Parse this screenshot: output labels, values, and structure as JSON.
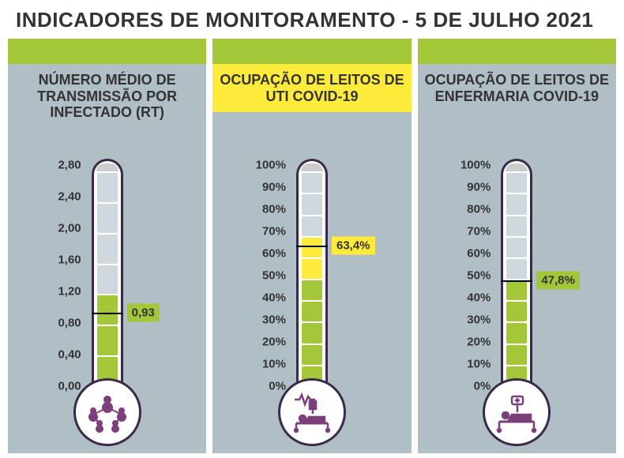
{
  "title": "INDICADORES DE MONITORAMENTO - 5 DE JULHO 2021",
  "colors": {
    "panel_bg": "#b0bec5",
    "green": "#a4c639",
    "yellow": "#ffeb3b",
    "gray": "#cfd8dc",
    "tube_border": "#3a2a4a",
    "purple": "#7b3f7b"
  },
  "panels": [
    {
      "title": "NÚMERO MÉDIO DE TRANSMISSÃO POR INFECTADO (RT)",
      "header_color": "#a4c639",
      "title_bg": "#b0bec5",
      "icon": "network",
      "scale": {
        "min": 0.0,
        "max": 2.8,
        "ticks": [
          "2,80",
          "2,40",
          "2,00",
          "1,60",
          "1,20",
          "0,80",
          "0,40",
          "0,00"
        ],
        "tick_values": [
          2.8,
          2.4,
          2.0,
          1.6,
          1.2,
          0.8,
          0.4,
          0.0
        ]
      },
      "value": 0.93,
      "value_label": "0,93",
      "flag_bg": "#a4c639",
      "segments": [
        {
          "from": 0.0,
          "to": 1.0,
          "color": "#a4c639"
        },
        {
          "from": 1.0,
          "to": 1.2,
          "color": "#cfd8dc"
        }
      ],
      "seg_count": 7,
      "seg_colors": [
        "#a4c639",
        "#a4c639",
        "#a4c639",
        "#cfd8dc",
        "#cfd8dc",
        "#cfd8dc",
        "#cfd8dc"
      ]
    },
    {
      "title": "OCUPAÇÃO DE LEITOS DE UTI COVID-19",
      "header_color": "#a4c639",
      "title_bg": "#ffeb3b",
      "icon": "icu",
      "scale": {
        "min": 0,
        "max": 100,
        "ticks": [
          "100%",
          "90%",
          "80%",
          "70%",
          "60%",
          "50%",
          "40%",
          "30%",
          "20%",
          "10%",
          "0%"
        ],
        "tick_values": [
          100,
          90,
          80,
          70,
          60,
          50,
          40,
          30,
          20,
          10,
          0
        ]
      },
      "value": 63.4,
      "value_label": "63,4%",
      "flag_bg": "#ffeb3b",
      "seg_count": 10,
      "seg_colors": [
        "#a4c639",
        "#a4c639",
        "#a4c639",
        "#a4c639",
        "#a4c639",
        "#ffeb3b",
        "#ffeb3b",
        "#cfd8dc",
        "#cfd8dc",
        "#cfd8dc"
      ]
    },
    {
      "title": "OCUPAÇÃO DE LEITOS DE ENFERMARIA COVID-19",
      "header_color": "#a4c639",
      "title_bg": "#b0bec5",
      "icon": "bed",
      "scale": {
        "min": 0,
        "max": 100,
        "ticks": [
          "100%",
          "90%",
          "80%",
          "70%",
          "60%",
          "50%",
          "40%",
          "30%",
          "20%",
          "10%",
          "0%"
        ],
        "tick_values": [
          100,
          90,
          80,
          70,
          60,
          50,
          40,
          30,
          20,
          10,
          0
        ]
      },
      "value": 47.8,
      "value_label": "47,8%",
      "flag_bg": "#a4c639",
      "seg_count": 10,
      "seg_colors": [
        "#a4c639",
        "#a4c639",
        "#a4c639",
        "#a4c639",
        "#a4c639",
        "#cfd8dc",
        "#cfd8dc",
        "#cfd8dc",
        "#cfd8dc",
        "#cfd8dc"
      ]
    }
  ]
}
